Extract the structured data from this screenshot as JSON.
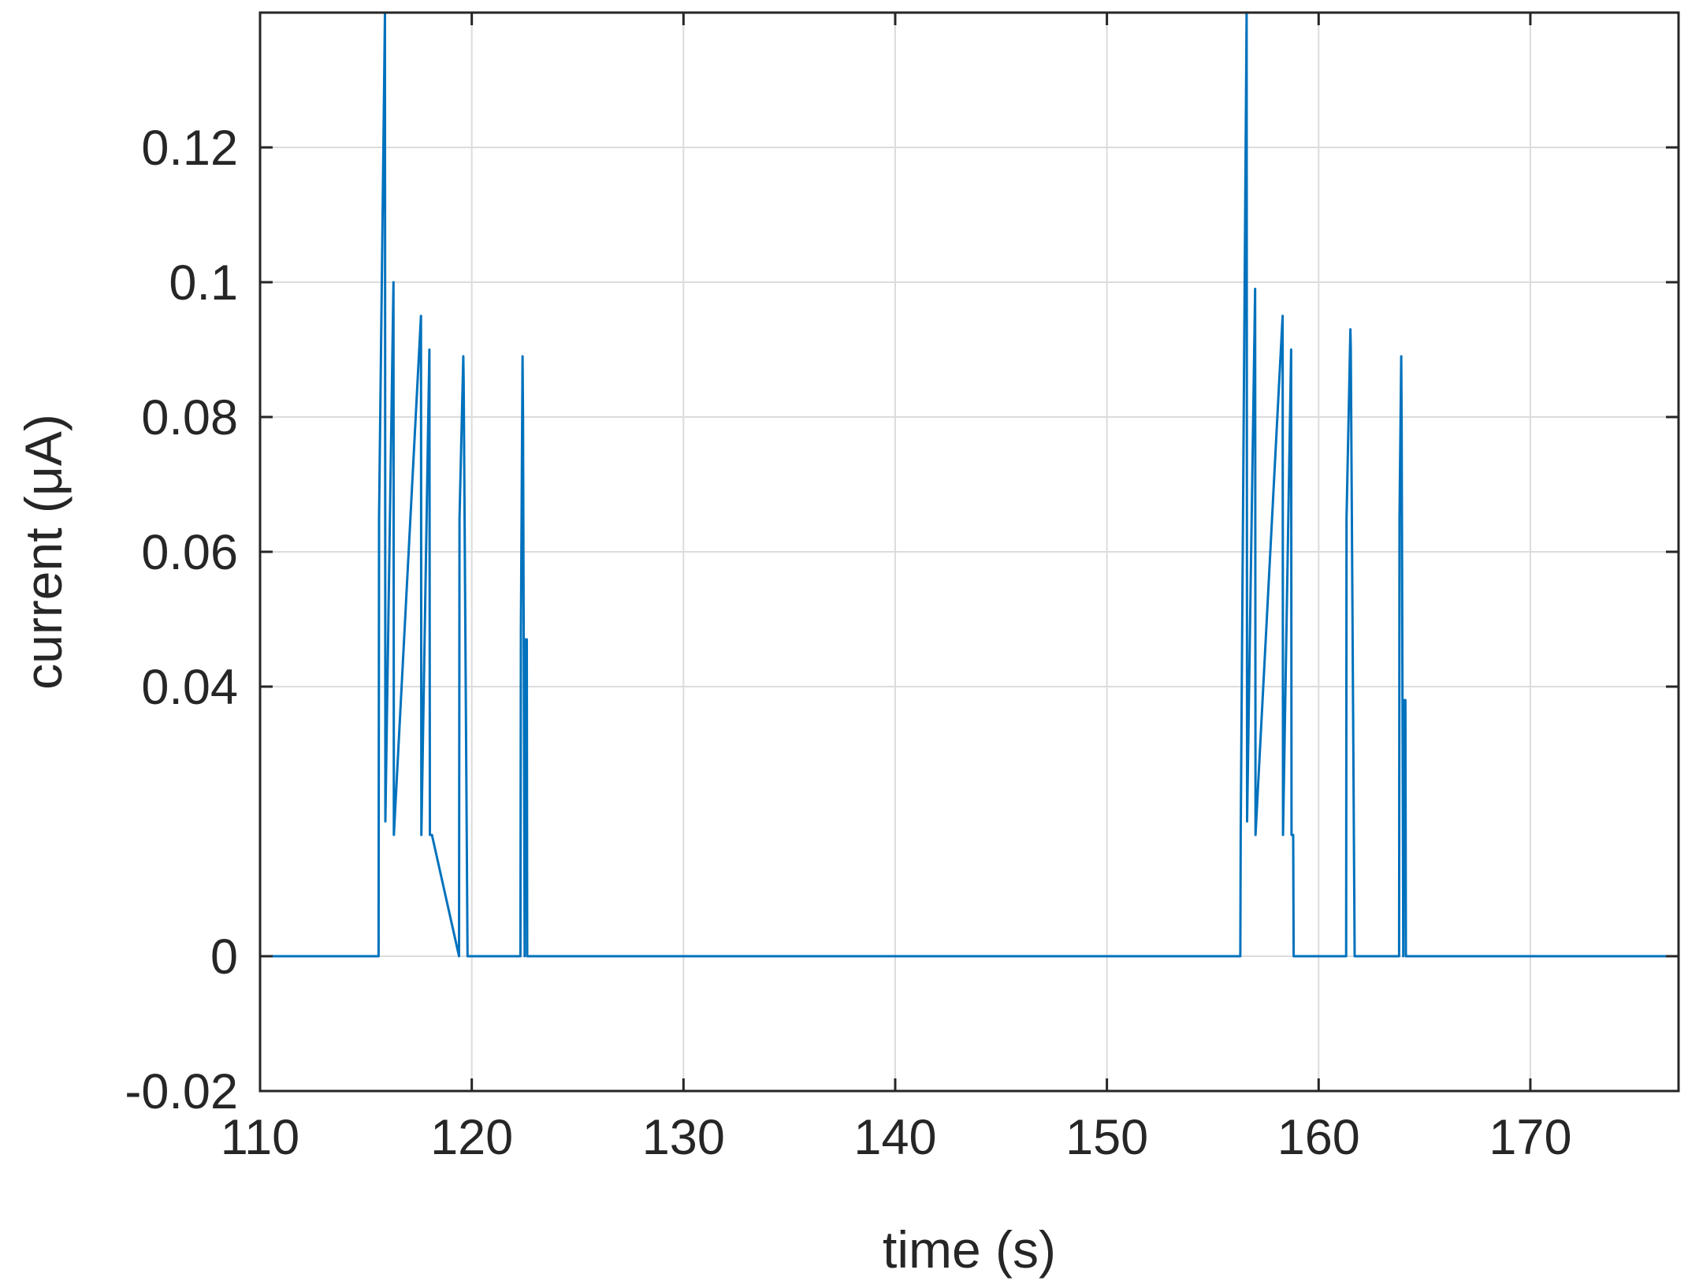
{
  "chart_data": {
    "type": "line",
    "title": "",
    "xlabel": "time (s)",
    "ylabel": "current (μA)",
    "xlim": [
      110,
      177
    ],
    "ylim": [
      -0.02,
      0.14
    ],
    "xticks": [
      110,
      120,
      130,
      140,
      150,
      160,
      170
    ],
    "yticks": [
      -0.02,
      0,
      0.04,
      0.06,
      0.08,
      0.1,
      0.12
    ],
    "ytick_labels": [
      "-0.02",
      "0",
      "0.04",
      "0.06",
      "0.08",
      "0.1",
      "0.12"
    ],
    "grid": true,
    "line_color": "#0072bd",
    "series": [
      {
        "x": [
          110,
          115.6,
          115.62,
          115.9,
          115.92,
          116.3,
          116.32,
          117.6,
          117.62,
          118.0,
          118.02,
          118.1,
          118.12,
          119.4,
          119.42,
          119.6,
          119.62,
          119.8,
          119.82,
          122.3,
          122.32,
          122.4,
          122.42,
          122.5,
          122.52,
          122.6,
          122.62,
          122.8,
          122.82,
          156.3,
          156.32,
          156.6,
          156.62,
          157.0,
          157.02,
          158.3,
          158.32,
          158.7,
          158.72,
          158.8,
          158.82,
          161.3,
          161.32,
          161.5,
          161.52,
          161.7,
          161.72,
          163.8,
          163.82,
          163.9,
          163.92,
          164.0,
          164.02,
          164.1,
          164.12,
          164.3,
          164.32,
          177
        ],
        "y": [
          0,
          0,
          0.065,
          0.14,
          0.02,
          0.1,
          0.018,
          0.095,
          0.018,
          0.09,
          0.018,
          0.018,
          0.018,
          0,
          0.065,
          0.089,
          0.085,
          0,
          0,
          0,
          0.048,
          0.089,
          0.08,
          0,
          0.047,
          0.047,
          0,
          0,
          0,
          0,
          0.018,
          0.14,
          0.02,
          0.099,
          0.018,
          0.095,
          0.018,
          0.09,
          0.018,
          0.018,
          0,
          0,
          0.065,
          0.093,
          0.09,
          0,
          0,
          0,
          0.065,
          0.089,
          0.08,
          0,
          0.038,
          0.038,
          0,
          0,
          0,
          0
        ]
      }
    ]
  }
}
